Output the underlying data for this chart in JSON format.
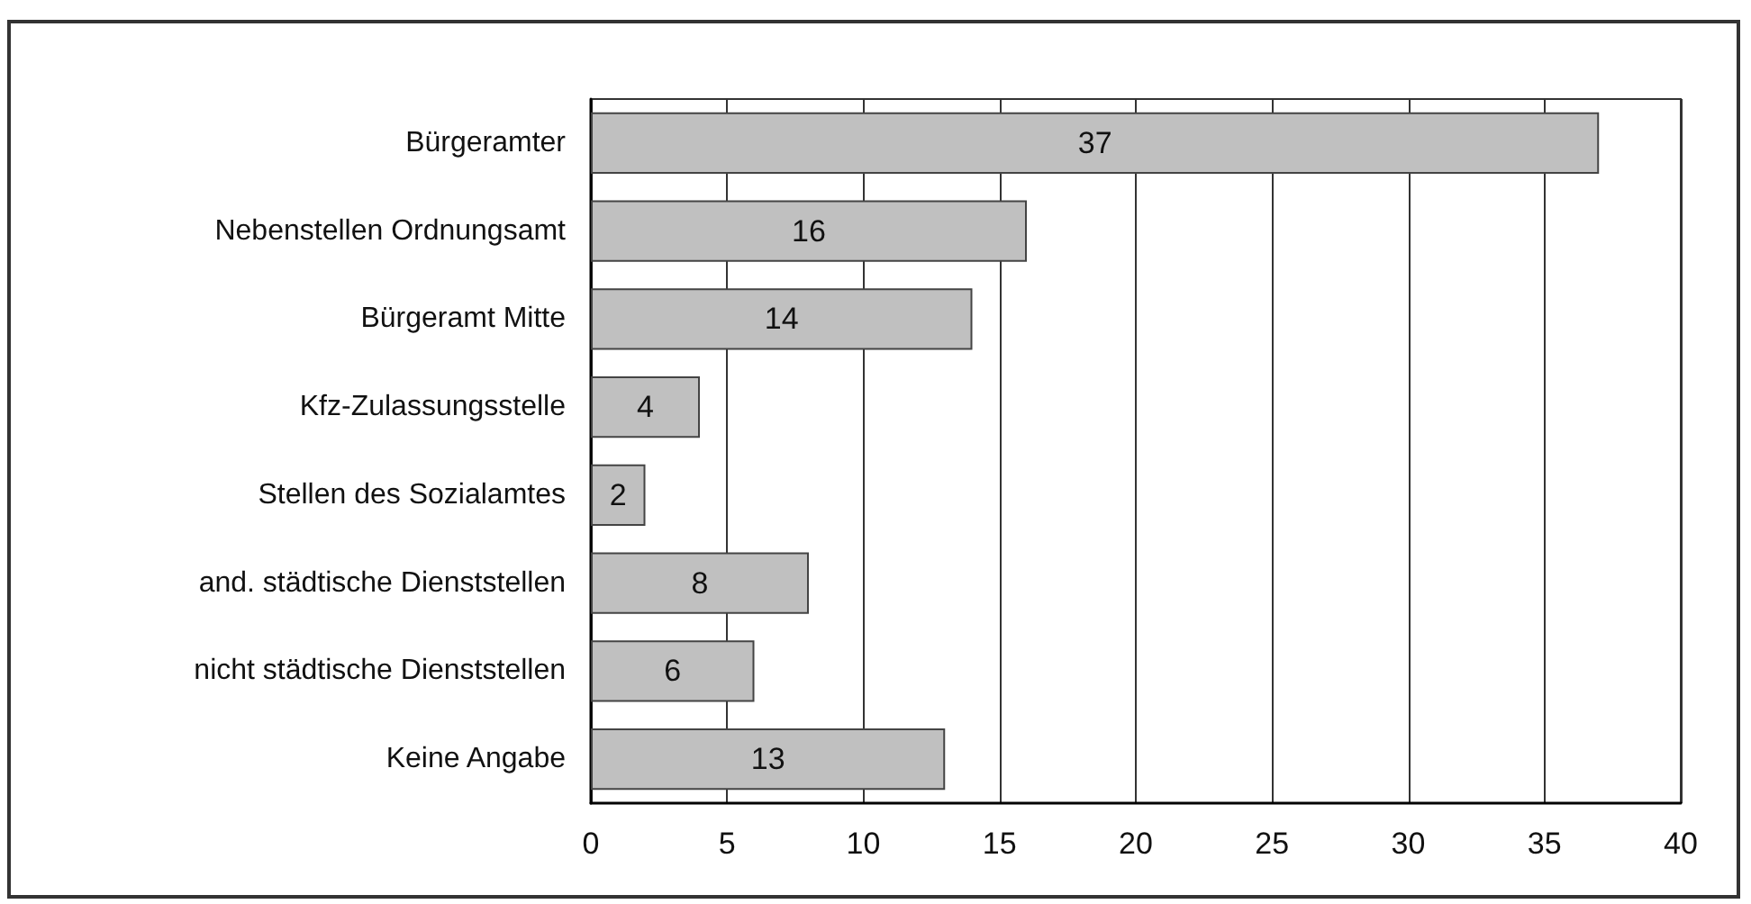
{
  "chart_data": {
    "type": "bar",
    "orientation": "horizontal",
    "categories": [
      "Bürgeramter",
      "Nebenstellen Ordnungsamt",
      "Bürgeramt Mitte",
      "Kfz-Zulassungsstelle",
      "Stellen des Sozialamtes",
      "and. städtische Dienststellen",
      "nicht städtische Dienststellen",
      "Keine Angabe"
    ],
    "values": [
      37,
      16,
      14,
      4,
      2,
      8,
      6,
      13
    ],
    "color": "#c0c0c0",
    "xlim": [
      0,
      40
    ],
    "xticks": [
      0,
      5,
      10,
      15,
      20,
      25,
      30,
      35,
      40
    ],
    "grid": "x",
    "data_labels": true
  }
}
